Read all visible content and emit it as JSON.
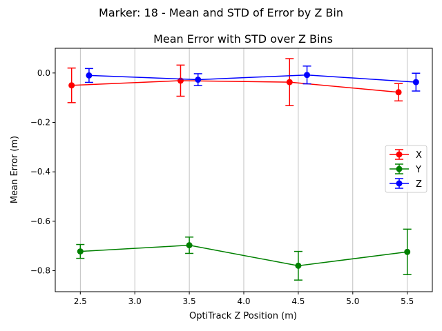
{
  "suptitle": "Marker: 18 - Mean and STD of Error by Z Bin",
  "chart_data": {
    "type": "line",
    "title": "Mean Error with STD over Z Bins",
    "xlabel": "OptiTrack Z Position (m)",
    "ylabel": "Mean Error (m)",
    "xlim": [
      2.27,
      5.73
    ],
    "ylim": [
      -0.885,
      0.1
    ],
    "xticks": [
      2.5,
      3.0,
      3.5,
      4.0,
      4.5,
      5.0,
      5.5
    ],
    "xtick_labels": [
      "2.5",
      "3.0",
      "3.5",
      "4.0",
      "4.5",
      "5.0",
      "5.5"
    ],
    "yticks": [
      0.0,
      -0.2,
      -0.4,
      -0.6,
      -0.8
    ],
    "ytick_labels": [
      "0.0",
      "−0.2",
      "−0.4",
      "−0.6",
      "−0.8"
    ],
    "grid": "x",
    "legend_position": "center-right",
    "series": [
      {
        "name": "X",
        "color": "#ff0000",
        "x": [
          2.42,
          3.42,
          4.42,
          5.42
        ],
        "y": [
          -0.05,
          -0.031,
          -0.037,
          -0.078
        ],
        "std": [
          0.07,
          0.063,
          0.095,
          0.035
        ]
      },
      {
        "name": "Y",
        "color": "#008000",
        "x": [
          2.5,
          3.5,
          4.5,
          5.5
        ],
        "y": [
          -0.722,
          -0.697,
          -0.78,
          -0.724
        ],
        "std": [
          0.028,
          0.033,
          0.058,
          0.092
        ]
      },
      {
        "name": "Z",
        "color": "#0000ff",
        "x": [
          2.58,
          3.58,
          4.58,
          5.58
        ],
        "y": [
          -0.01,
          -0.027,
          -0.008,
          -0.037
        ],
        "std": [
          0.028,
          0.024,
          0.036,
          0.036
        ]
      }
    ]
  }
}
